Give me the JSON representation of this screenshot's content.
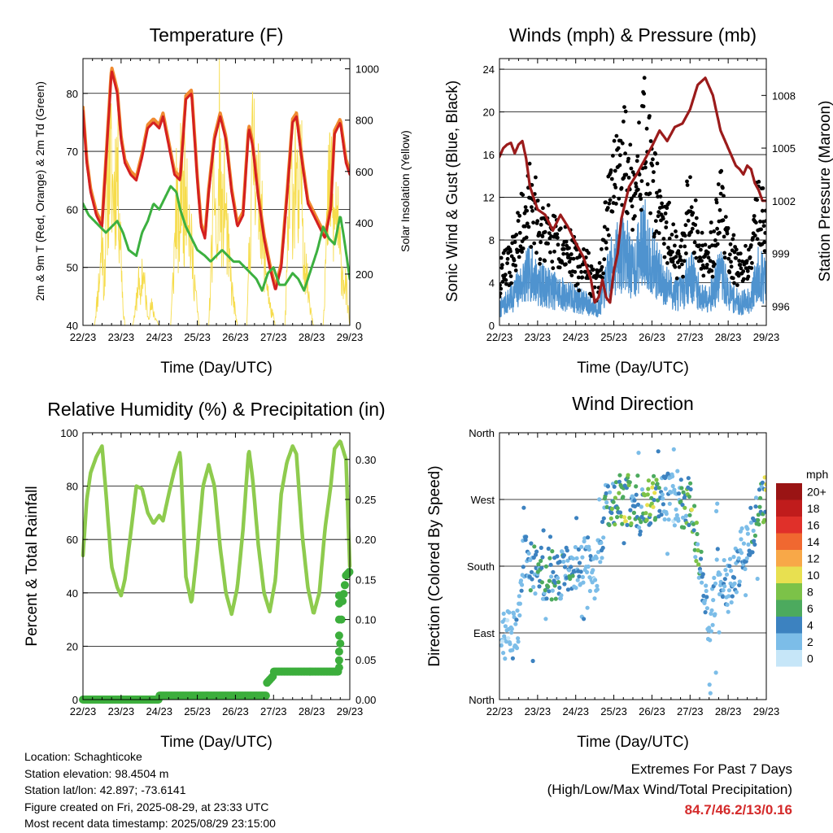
{
  "x_ticks": [
    "22/23",
    "23/23",
    "24/23",
    "25/23",
    "26/23",
    "27/23",
    "28/23",
    "29/23"
  ],
  "colors": {
    "temp2m": "#d42020",
    "temp9m": "#f08a30",
    "dewpoint": "#3cb040",
    "solar": "#f6dc4c",
    "wind": "#4f93cf",
    "gust": "#000000",
    "pressure": "#9b1b1b",
    "rh": "#8ecb4e",
    "precip": "#3cae3c"
  },
  "chart_data": [
    {
      "type": "line",
      "id": "temperature",
      "title": "Temperature (F)",
      "xlabel": "Time (Day/UTC)",
      "ylabel": "2m & 9m T (Red, Orange) & 2m Td (Green)",
      "ylabel_right": "Solar Insolation (Yellow)",
      "ylim": [
        40,
        86
      ],
      "yticks": [
        40,
        50,
        60,
        70,
        80
      ],
      "ylim_right": [
        0,
        1040
      ],
      "yticks_right": [
        0,
        200,
        400,
        600,
        800,
        1000
      ],
      "grid": true,
      "series": [
        {
          "key": "temp",
          "axis": "left",
          "x": [
            0,
            0.1,
            0.2,
            0.35,
            0.5,
            0.62,
            0.75,
            0.9,
            1.0,
            1.1,
            1.25,
            1.4,
            1.55,
            1.7,
            1.85,
            2.0,
            2.1,
            2.25,
            2.4,
            2.55,
            2.7,
            2.85,
            3.0,
            3.1,
            3.2,
            3.3,
            3.45,
            3.6,
            3.75,
            3.9,
            4.05,
            4.2,
            4.35,
            4.45,
            4.6,
            4.75,
            4.9,
            5.05,
            5.2,
            5.35,
            5.5,
            5.6,
            5.75,
            5.9,
            6.05,
            6.2,
            6.35,
            6.5,
            6.6,
            6.75,
            6.9,
            7.0
          ],
          "values": [
            77,
            68,
            63,
            59,
            57,
            70,
            84,
            80,
            72,
            68,
            66,
            65,
            69,
            74,
            75,
            74,
            76,
            71,
            66,
            65,
            79,
            80,
            65,
            57,
            55,
            63,
            72,
            76,
            72,
            63,
            57,
            59,
            74,
            71,
            62,
            55,
            50,
            46,
            50,
            62,
            75,
            76,
            68,
            61,
            59,
            57,
            55,
            60,
            73,
            75,
            68,
            66
          ]
        },
        {
          "key": "dewpoint",
          "axis": "left",
          "x": [
            0,
            0.15,
            0.3,
            0.45,
            0.6,
            0.75,
            0.9,
            1.05,
            1.2,
            1.4,
            1.55,
            1.7,
            1.85,
            2.0,
            2.15,
            2.3,
            2.45,
            2.55,
            2.7,
            2.85,
            3.0,
            3.2,
            3.35,
            3.5,
            3.65,
            3.8,
            3.95,
            4.1,
            4.25,
            4.4,
            4.55,
            4.7,
            4.85,
            5.0,
            5.15,
            5.3,
            5.5,
            5.65,
            5.8,
            6.0,
            6.15,
            6.3,
            6.45,
            6.6,
            6.75,
            6.85,
            7.0
          ],
          "values": [
            61,
            59,
            58,
            57,
            56,
            57,
            58,
            56,
            53,
            52,
            56,
            58,
            61,
            60,
            62,
            64,
            63,
            60,
            57,
            55,
            53,
            52,
            51,
            52,
            53,
            52,
            51,
            51,
            50,
            49,
            48,
            46,
            49,
            50,
            47,
            47,
            49,
            48,
            46,
            50,
            53,
            57,
            55,
            54,
            59,
            55,
            48
          ]
        },
        {
          "key": "solar",
          "axis": "right",
          "x": [
            0,
            0.3,
            0.38,
            0.45,
            0.5,
            0.55,
            0.62,
            0.7,
            0.8,
            0.9,
            1.0,
            1.05,
            1.1,
            1.3,
            1.38,
            1.45,
            1.5,
            1.55,
            1.62,
            1.7,
            1.8,
            1.9,
            2.0,
            2.05,
            2.1,
            2.3,
            2.38,
            2.45,
            2.52,
            2.58,
            2.65,
            2.72,
            2.8,
            2.9,
            3.0,
            3.05,
            3.1,
            3.3,
            3.38,
            3.45,
            3.52,
            3.58,
            3.65,
            3.72,
            3.8,
            3.9,
            4.0,
            4.05,
            4.1,
            4.3,
            4.38,
            4.45,
            4.52,
            4.58,
            4.65,
            4.72,
            4.8,
            4.9,
            5.0,
            5.05,
            5.1,
            5.3,
            5.38,
            5.45,
            5.52,
            5.58,
            5.65,
            5.72,
            5.8,
            5.9,
            6.0,
            6.05,
            6.1,
            6.3,
            6.38,
            6.45,
            6.52,
            6.58,
            6.65,
            6.72,
            6.8,
            6.9,
            7.0
          ],
          "values": [
            0,
            0,
            150,
            300,
            500,
            200,
            650,
            900,
            700,
            880,
            400,
            100,
            0,
            0,
            80,
            250,
            120,
            300,
            200,
            50,
            100,
            40,
            0,
            0,
            0,
            0,
            300,
            700,
            400,
            880,
            600,
            900,
            500,
            300,
            80,
            0,
            0,
            0,
            400,
            800,
            300,
            950,
            500,
            700,
            400,
            200,
            60,
            0,
            0,
            0,
            500,
            900,
            1000,
            600,
            800,
            400,
            300,
            100,
            40,
            0,
            0,
            0,
            450,
            800,
            700,
            900,
            500,
            850,
            400,
            200,
            60,
            0,
            0,
            0,
            400,
            700,
            800,
            500,
            650,
            400,
            300,
            200,
            0
          ]
        }
      ]
    },
    {
      "type": "line",
      "id": "winds",
      "title": "Winds (mph) & Pressure (mb)",
      "xlabel": "Time (Day/UTC)",
      "ylabel": "Sonic Wind & Gust (Blue, Black)",
      "ylabel_right": "Station Pressure (Maroon)",
      "ylim": [
        0,
        25
      ],
      "yticks": [
        0,
        4,
        8,
        12,
        16,
        20,
        24
      ],
      "ylim_right": [
        994.9,
        1010.1
      ],
      "yticks_right": [
        996,
        999,
        1002,
        1005,
        1008
      ],
      "grid": true,
      "series": [
        {
          "key": "pressure",
          "axis": "right",
          "x": [
            0,
            0.1,
            0.2,
            0.3,
            0.4,
            0.5,
            0.6,
            0.7,
            0.8,
            1.0,
            1.2,
            1.4,
            1.6,
            1.8,
            2.0,
            2.2,
            2.4,
            2.5,
            2.6,
            2.7,
            2.8,
            2.9,
            3.0,
            3.1,
            3.2,
            3.4,
            3.6,
            3.8,
            4.0,
            4.2,
            4.4,
            4.6,
            4.8,
            5.0,
            5.2,
            5.4,
            5.6,
            5.8,
            6.0,
            6.2,
            6.3,
            6.4,
            6.5,
            6.6,
            6.7,
            6.8,
            6.9,
            7.0
          ],
          "values": [
            1004.5,
            1005,
            1005.2,
            1005.3,
            1004.7,
            1005.2,
            1005.4,
            1004.4,
            1002.8,
            1001.5,
            1001.2,
            1000.3,
            1001.2,
            1000.5,
            999.6,
            998.8,
            997.5,
            996.2,
            996.5,
            997.5,
            996.5,
            996.2,
            998,
            999,
            1001,
            1002.8,
            1003.5,
            1004.3,
            1005.1,
            1006,
            1005.4,
            1006.2,
            1006.4,
            1007.2,
            1008.6,
            1009,
            1008,
            1006,
            1005,
            1004,
            1003.8,
            1003.5,
            1004,
            1003.8,
            1003,
            1002.6,
            1002,
            1002
          ]
        }
      ]
    },
    {
      "type": "line",
      "id": "humidity",
      "title": "Relative Humidity (%) & Precipitation (in)",
      "xlabel": "Time (Day/UTC)",
      "ylabel": "Percent & Total Rainfall",
      "ylim": [
        0,
        100
      ],
      "yticks": [
        0,
        20,
        40,
        60,
        80,
        100
      ],
      "ylim_right": [
        0,
        0.3333
      ],
      "yticks_right": [
        0.0,
        0.05,
        0.1,
        0.15,
        0.2,
        0.25,
        0.3
      ],
      "yticklabels_right": [
        "0.00",
        "0.05",
        "0.10",
        "0.15",
        "0.20",
        "0.25",
        "0.30"
      ],
      "grid": true,
      "series": [
        {
          "key": "rh",
          "axis": "left",
          "x": [
            0,
            0.1,
            0.2,
            0.35,
            0.5,
            0.6,
            0.75,
            0.9,
            1.0,
            1.1,
            1.25,
            1.4,
            1.55,
            1.7,
            1.85,
            2.0,
            2.1,
            2.25,
            2.4,
            2.55,
            2.7,
            2.85,
            3.0,
            3.15,
            3.3,
            3.45,
            3.6,
            3.75,
            3.9,
            4.05,
            4.2,
            4.35,
            4.45,
            4.6,
            4.75,
            4.9,
            5.05,
            5.2,
            5.35,
            5.5,
            5.6,
            5.75,
            5.9,
            6.05,
            6.2,
            6.35,
            6.5,
            6.6,
            6.75,
            6.9,
            7.0
          ],
          "values": [
            54,
            75,
            85,
            91,
            95,
            78,
            50,
            42,
            39,
            45,
            62,
            80,
            79,
            70,
            66,
            69,
            67,
            77,
            86,
            93,
            46,
            36,
            56,
            80,
            88,
            80,
            57,
            40,
            32,
            42,
            64,
            94,
            83,
            58,
            40,
            33,
            45,
            77,
            89,
            95,
            92,
            62,
            42,
            32,
            40,
            64,
            80,
            94,
            97,
            90,
            50
          ]
        },
        {
          "key": "precip",
          "axis": "right",
          "x": [
            0,
            2.0,
            2.001,
            4.8,
            4.81,
            5.0,
            5.001,
            6.7,
            6.75,
            6.8,
            6.85,
            6.9,
            7.0
          ],
          "values": [
            0.0,
            0.0,
            0.005,
            0.005,
            0.02,
            0.03,
            0.035,
            0.035,
            0.07,
            0.12,
            0.135,
            0.155,
            0.16
          ]
        }
      ]
    },
    {
      "type": "scatter",
      "id": "direction",
      "title": "Wind Direction",
      "xlabel": "Time (Day/UTC)",
      "ylabel": "Direction (Colored By Speed)",
      "yticklabels": [
        "North",
        "East",
        "South",
        "West",
        "North"
      ],
      "ylim": [
        0,
        360
      ],
      "legend": {
        "title": "mph",
        "labels": [
          "0",
          "2",
          "4",
          "6",
          "8",
          "10",
          "12",
          "14",
          "16",
          "18",
          "20+"
        ],
        "colors": [
          "#c6e6f8",
          "#7cbde8",
          "#3c82c0",
          "#4caa5e",
          "#7cc248",
          "#e8e050",
          "#f8a848",
          "#f06830",
          "#e0302a",
          "#c01c1c",
          "#9a1414"
        ]
      }
    }
  ],
  "info": {
    "location": "Location: Schaghticoke",
    "elevation": "Station elevation: 98.4504 m",
    "latlon": "Station lat/lon: 42.897; -73.6141",
    "created": "Figure created on Fri, 2025-08-29, at 23:33 UTC",
    "recent": "Most recent data timestamp: 2025/08/29 23:15:00"
  },
  "extremes": {
    "line1": "Extremes For Past 7 Days",
    "line2": "(High/Low/Max Wind/Total Precipitation)",
    "values": "84.7/46.2/13/0.16"
  }
}
